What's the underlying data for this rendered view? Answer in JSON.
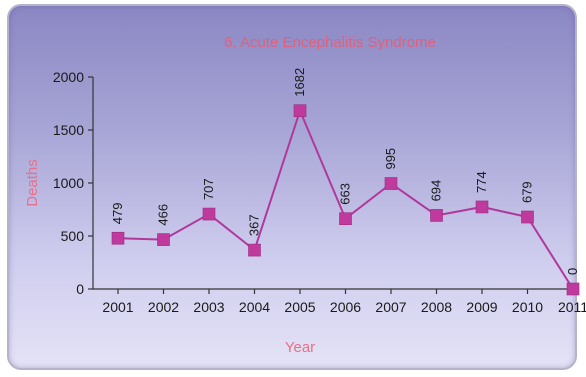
{
  "chart_data": {
    "type": "line",
    "title": "6. Acute Encephalitis Syndrome",
    "xlabel": "Year",
    "ylabel": "Deaths",
    "categories": [
      "2001",
      "2002",
      "2003",
      "2004",
      "2005",
      "2006",
      "2007",
      "2008",
      "2009",
      "2010",
      "2011"
    ],
    "series": [
      {
        "values": [
          479,
          466,
          707,
          367,
          1682,
          663,
          995,
          694,
          774,
          679,
          0
        ],
        "labels": [
          "479",
          "466",
          "707",
          "367",
          "1682",
          "663",
          "995",
          "694",
          "774",
          "679",
          "0"
        ],
        "color": "#b0389c"
      }
    ],
    "ylim": [
      0,
      2000
    ],
    "yticks": [
      "0",
      "500",
      "1000",
      "1500",
      "2000"
    ],
    "ytick_values": [
      0,
      500,
      1000,
      1500,
      2000
    ],
    "grid": false,
    "legend": "none"
  }
}
